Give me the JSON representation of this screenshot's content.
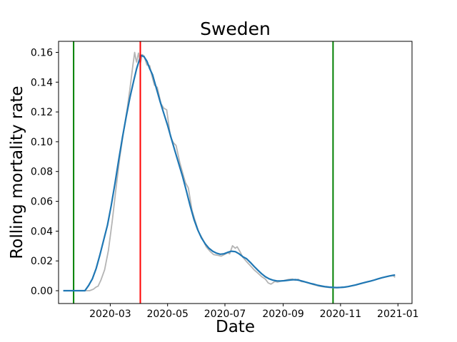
{
  "figure": {
    "background": "#ffffff",
    "spine_color": "#000000"
  },
  "chart_data": {
    "type": "line",
    "title": "Sweden",
    "xlabel": "Date",
    "ylabel": "Rolling mortality rate",
    "grid": false,
    "legend": false,
    "xlim": [
      "2020-01-06",
      "2021-01-16"
    ],
    "ylim": [
      -0.0086,
      0.1674
    ],
    "x_ticks": [
      {
        "label": "2020-03",
        "date": "2020-03-01"
      },
      {
        "label": "2020-05",
        "date": "2020-05-01"
      },
      {
        "label": "2020-07",
        "date": "2020-07-01"
      },
      {
        "label": "2020-09",
        "date": "2020-09-01"
      },
      {
        "label": "2020-11",
        "date": "2020-11-01"
      },
      {
        "label": "2021-01",
        "date": "2021-01-01"
      }
    ],
    "y_ticks": [
      {
        "label": "0.00",
        "value": 0.0
      },
      {
        "label": "0.02",
        "value": 0.02
      },
      {
        "label": "0.04",
        "value": 0.04
      },
      {
        "label": "0.06",
        "value": 0.06
      },
      {
        "label": "0.08",
        "value": 0.08
      },
      {
        "label": "0.10",
        "value": 0.1
      },
      {
        "label": "0.12",
        "value": 0.12
      },
      {
        "label": "0.14",
        "value": 0.14
      },
      {
        "label": "0.16",
        "value": 0.16
      }
    ],
    "vlines": [
      {
        "name": "event-vline-green-start",
        "date": "2020-01-22",
        "color": "#008000",
        "width": 2,
        "layer": "back"
      },
      {
        "name": "event-vline-green-end",
        "date": "2020-10-24",
        "color": "#008000",
        "width": 2,
        "layer": "back"
      },
      {
        "name": "event-vline-red-peak",
        "date": "2020-04-02",
        "color": "#ff0000",
        "width": 2,
        "layer": "front"
      }
    ],
    "series": [
      {
        "name": "raw-rolling-mortality-rate",
        "color": "#b4b4b4",
        "line_width": 1.8,
        "points": [
          [
            "2020-01-16",
            0
          ],
          [
            "2020-02-08",
            0
          ],
          [
            "2020-02-12",
            0.001
          ],
          [
            "2020-02-15",
            0.0025
          ],
          [
            "2020-02-17",
            0.003
          ],
          [
            "2020-02-20",
            0.007
          ],
          [
            "2020-02-24",
            0.014
          ],
          [
            "2020-02-28",
            0.027
          ],
          [
            "2020-03-03",
            0.046
          ],
          [
            "2020-03-07",
            0.068
          ],
          [
            "2020-03-11",
            0.089
          ],
          [
            "2020-03-15",
            0.106
          ],
          [
            "2020-03-19",
            0.122
          ],
          [
            "2020-03-22",
            0.136
          ],
          [
            "2020-03-25",
            0.151
          ],
          [
            "2020-03-27",
            0.16
          ],
          [
            "2020-03-28",
            0.156
          ],
          [
            "2020-03-29",
            0.1535
          ],
          [
            "2020-03-31",
            0.1595
          ],
          [
            "2020-04-02",
            0.1525
          ],
          [
            "2020-04-04",
            0.1585
          ],
          [
            "2020-04-06",
            0.1575
          ],
          [
            "2020-04-09",
            0.1515
          ],
          [
            "2020-04-12",
            0.151
          ],
          [
            "2020-04-14",
            0.145
          ],
          [
            "2020-04-17",
            0.138
          ],
          [
            "2020-04-20",
            0.1365
          ],
          [
            "2020-04-24",
            0.1255
          ],
          [
            "2020-04-27",
            0.1225
          ],
          [
            "2020-04-30",
            0.1215
          ],
          [
            "2020-05-04",
            0.1035
          ],
          [
            "2020-05-07",
            0.0995
          ],
          [
            "2020-05-10",
            0.0975
          ],
          [
            "2020-05-14",
            0.086
          ],
          [
            "2020-05-17",
            0.079
          ],
          [
            "2020-05-20",
            0.0725
          ],
          [
            "2020-05-23",
            0.069
          ],
          [
            "2020-05-27",
            0.054
          ],
          [
            "2020-05-30",
            0.0475
          ],
          [
            "2020-06-03",
            0.0395
          ],
          [
            "2020-06-07",
            0.035
          ],
          [
            "2020-06-11",
            0.0295
          ],
          [
            "2020-06-15",
            0.0265
          ],
          [
            "2020-06-19",
            0.0242
          ],
          [
            "2020-06-23",
            0.0238
          ],
          [
            "2020-06-27",
            0.0232
          ],
          [
            "2020-07-01",
            0.0245
          ],
          [
            "2020-07-04",
            0.0255
          ],
          [
            "2020-07-06",
            0.0248
          ],
          [
            "2020-07-09",
            0.0302
          ],
          [
            "2020-07-12",
            0.0285
          ],
          [
            "2020-07-14",
            0.0295
          ],
          [
            "2020-07-17",
            0.0262
          ],
          [
            "2020-07-20",
            0.0225
          ],
          [
            "2020-07-24",
            0.0195
          ],
          [
            "2020-07-28",
            0.0168
          ],
          [
            "2020-08-01",
            0.014
          ],
          [
            "2020-08-05",
            0.0118
          ],
          [
            "2020-08-09",
            0.0095
          ],
          [
            "2020-08-13",
            0.0078
          ],
          [
            "2020-08-16",
            0.0052
          ],
          [
            "2020-08-19",
            0.0044
          ],
          [
            "2020-08-23",
            0.0062
          ],
          [
            "2020-08-26",
            0.0058
          ],
          [
            "2020-08-30",
            0.0065
          ],
          [
            "2020-09-03",
            0.007
          ],
          [
            "2020-09-07",
            0.0076
          ],
          [
            "2020-09-11",
            0.0078
          ],
          [
            "2020-09-14",
            0.007
          ],
          [
            "2020-09-17",
            0.0077
          ],
          [
            "2020-09-20",
            0.0062
          ],
          [
            "2020-09-24",
            0.0059
          ],
          [
            "2020-09-28",
            0.0052
          ],
          [
            "2020-10-02",
            0.0043
          ],
          [
            "2020-10-06",
            0.0036
          ],
          [
            "2020-10-10",
            0.003
          ],
          [
            "2020-10-14",
            0.0026
          ],
          [
            "2020-10-19",
            0.0022
          ],
          [
            "2020-10-24",
            0.002
          ],
          [
            "2020-10-29",
            0.002
          ],
          [
            "2020-11-03",
            0.0022
          ],
          [
            "2020-11-08",
            0.0026
          ],
          [
            "2020-11-13",
            0.0032
          ],
          [
            "2020-11-18",
            0.004
          ],
          [
            "2020-11-23",
            0.0048
          ],
          [
            "2020-11-28",
            0.0056
          ],
          [
            "2020-12-03",
            0.0064
          ],
          [
            "2020-12-08",
            0.0074
          ],
          [
            "2020-12-13",
            0.0084
          ],
          [
            "2020-12-18",
            0.0092
          ],
          [
            "2020-12-23",
            0.0098
          ],
          [
            "2020-12-27",
            0.0102
          ],
          [
            "2020-12-29",
            0.009
          ]
        ]
      },
      {
        "name": "smoothed-rolling-mortality-rate",
        "color": "#1f77b4",
        "line_width": 2.2,
        "points": [
          [
            "2020-01-11",
            0
          ],
          [
            "2020-02-03",
            0
          ],
          [
            "2020-02-07",
            0.0035
          ],
          [
            "2020-02-11",
            0.008
          ],
          [
            "2020-02-15",
            0.015
          ],
          [
            "2020-02-19",
            0.024
          ],
          [
            "2020-02-23",
            0.034
          ],
          [
            "2020-02-27",
            0.044
          ],
          [
            "2020-03-02",
            0.057
          ],
          [
            "2020-03-06",
            0.072
          ],
          [
            "2020-03-10",
            0.088
          ],
          [
            "2020-03-14",
            0.103
          ],
          [
            "2020-03-18",
            0.117
          ],
          [
            "2020-03-22",
            0.13
          ],
          [
            "2020-03-26",
            0.141
          ],
          [
            "2020-03-29",
            0.149
          ],
          [
            "2020-04-01",
            0.155
          ],
          [
            "2020-04-03",
            0.158
          ],
          [
            "2020-04-06",
            0.157
          ],
          [
            "2020-04-09",
            0.154
          ],
          [
            "2020-04-12",
            0.149
          ],
          [
            "2020-04-15",
            0.145
          ],
          [
            "2020-04-19",
            0.136
          ],
          [
            "2020-04-23",
            0.127
          ],
          [
            "2020-04-27",
            0.119
          ],
          [
            "2020-05-01",
            0.111
          ],
          [
            "2020-05-05",
            0.102
          ],
          [
            "2020-05-09",
            0.0935
          ],
          [
            "2020-05-13",
            0.085
          ],
          [
            "2020-05-17",
            0.0765
          ],
          [
            "2020-05-21",
            0.067
          ],
          [
            "2020-05-25",
            0.057
          ],
          [
            "2020-05-29",
            0.048
          ],
          [
            "2020-06-02",
            0.041
          ],
          [
            "2020-06-06",
            0.0355
          ],
          [
            "2020-06-10",
            0.0315
          ],
          [
            "2020-06-14",
            0.0285
          ],
          [
            "2020-06-18",
            0.0265
          ],
          [
            "2020-06-22",
            0.0252
          ],
          [
            "2020-06-26",
            0.0245
          ],
          [
            "2020-06-30",
            0.0248
          ],
          [
            "2020-07-04",
            0.0258
          ],
          [
            "2020-07-08",
            0.0265
          ],
          [
            "2020-07-12",
            0.0262
          ],
          [
            "2020-07-16",
            0.0248
          ],
          [
            "2020-07-20",
            0.0228
          ],
          [
            "2020-07-24",
            0.0215
          ],
          [
            "2020-07-28",
            0.019
          ],
          [
            "2020-08-01",
            0.0163
          ],
          [
            "2020-08-05",
            0.0138
          ],
          [
            "2020-08-09",
            0.0114
          ],
          [
            "2020-08-13",
            0.0094
          ],
          [
            "2020-08-17",
            0.008
          ],
          [
            "2020-08-21",
            0.0071
          ],
          [
            "2020-08-25",
            0.0066
          ],
          [
            "2020-08-29",
            0.0065
          ],
          [
            "2020-09-02",
            0.0067
          ],
          [
            "2020-09-06",
            0.007
          ],
          [
            "2020-09-10",
            0.0073
          ],
          [
            "2020-09-14",
            0.0074
          ],
          [
            "2020-09-18",
            0.007
          ],
          [
            "2020-09-22",
            0.0063
          ],
          [
            "2020-09-26",
            0.0056
          ],
          [
            "2020-09-30",
            0.0049
          ],
          [
            "2020-10-04",
            0.0043
          ],
          [
            "2020-10-08",
            0.0036
          ],
          [
            "2020-10-12",
            0.0031
          ],
          [
            "2020-10-16",
            0.0027
          ],
          [
            "2020-10-20",
            0.0024
          ],
          [
            "2020-10-24",
            0.0022
          ],
          [
            "2020-10-28",
            0.0021
          ],
          [
            "2020-11-01",
            0.0022
          ],
          [
            "2020-11-05",
            0.0024
          ],
          [
            "2020-11-09",
            0.0028
          ],
          [
            "2020-11-13",
            0.0033
          ],
          [
            "2020-11-17",
            0.0039
          ],
          [
            "2020-11-21",
            0.0046
          ],
          [
            "2020-11-25",
            0.0052
          ],
          [
            "2020-11-29",
            0.0059
          ],
          [
            "2020-12-03",
            0.0065
          ],
          [
            "2020-12-07",
            0.0072
          ],
          [
            "2020-12-11",
            0.008
          ],
          [
            "2020-12-15",
            0.0087
          ],
          [
            "2020-12-19",
            0.0093
          ],
          [
            "2020-12-23",
            0.0099
          ],
          [
            "2020-12-27",
            0.0104
          ],
          [
            "2020-12-29",
            0.0106
          ]
        ]
      }
    ]
  }
}
